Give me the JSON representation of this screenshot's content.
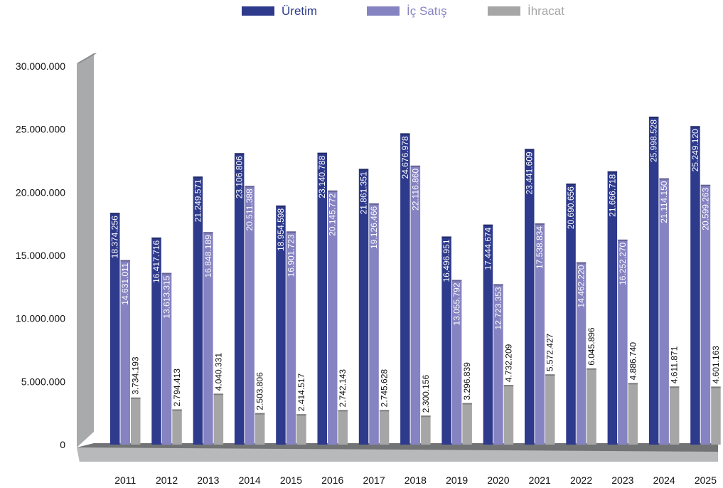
{
  "chart_data": {
    "type": "bar",
    "categories": [
      "2011",
      "2012",
      "2013",
      "2014",
      "2015",
      "2016",
      "2017",
      "2018",
      "2019",
      "2020",
      "2021",
      "2022",
      "2023",
      "2024",
      "2025"
    ],
    "series": [
      {
        "name": "Üretim",
        "color": "#2e3a8c",
        "values": [
          18374256,
          16417716,
          21249571,
          23106806,
          18954598,
          23140788,
          21861351,
          24676978,
          16496951,
          17444674,
          23441609,
          20690656,
          21666718,
          25998528,
          25249120
        ],
        "labels": [
          "18.374.256",
          "16.417.716",
          "21.249.571",
          "23.106.806",
          "18.954.598",
          "23.140.788",
          "21.861.351",
          "24.676.978",
          "16.496.951",
          "17.444.674",
          "23.441.609",
          "20.690.656",
          "21.666.718",
          "25.998.528",
          "25.249.120"
        ]
      },
      {
        "name": "İç Satış",
        "color": "#8683c3",
        "values": [
          14631011,
          13613315,
          16848189,
          20511388,
          16901723,
          20145772,
          19126466,
          22116860,
          13055792,
          12723353,
          17538834,
          14462220,
          16252270,
          21114150,
          20599263
        ],
        "labels": [
          "14.631.011",
          "13.613.315",
          "16.848.189",
          "20.511.388",
          "16.901.723",
          "20.145.772",
          "19.126.466",
          "22.116.860",
          "13.055.792",
          "12.723.353",
          "17.538.834",
          "14.462.220",
          "16.252.270",
          "21.114.150",
          "20.599.263"
        ]
      },
      {
        "name": "İhracat",
        "color": "#a6a6a6",
        "values": [
          3734193,
          2794413,
          4040331,
          2503806,
          2414517,
          2742143,
          2745628,
          2300156,
          3296839,
          4732209,
          5572427,
          6045896,
          4886740,
          4611871,
          4601163
        ],
        "labels": [
          "3.734.193",
          "2.794.413",
          "4.040.331",
          "2.503.806",
          "2.414.517",
          "2.742.143",
          "2.745.628",
          "2.300.156",
          "3.296.839",
          "4.732.209",
          "5.572.427",
          "6.045.896",
          "4.886.740",
          "4.611.871",
          "4.601.163"
        ]
      }
    ],
    "yticks": [
      0,
      5000000,
      10000000,
      15000000,
      20000000,
      25000000,
      30000000
    ],
    "ytick_labels": [
      "0",
      "5.000.000",
      "10.000.000",
      "15.000.000",
      "20.000.000",
      "25.000.000",
      "30.000.000"
    ],
    "ylim": [
      0,
      30000000
    ],
    "legend_position": "top-center",
    "three_d": true,
    "wall_color": "#a9aaac",
    "floor_color": "#727375"
  }
}
